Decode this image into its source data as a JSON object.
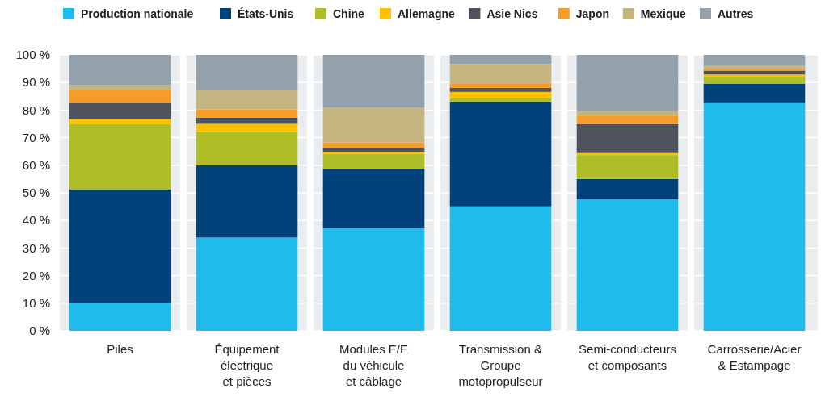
{
  "chart_data": {
    "type": "bar",
    "stacked": true,
    "categories": [
      "Piles",
      "Équipement\nélectrique\net pièces",
      "Modules E/E\ndu véhicule\net câblage",
      "Transmission &\nGroupe\nmotopropulseur",
      "Semi-conducteurs\net composants",
      "Carrosserie/Acier\n& Estampage"
    ],
    "series": [
      {
        "name": "Production nationale",
        "color": "#1fbbec",
        "values": [
          10,
          33.8,
          37.3,
          45.1,
          47.7,
          82.5
        ]
      },
      {
        "name": "États-Unis",
        "color": "#00437a",
        "values": [
          41.3,
          26.2,
          21.4,
          37.8,
          7.3,
          7.1
        ]
      },
      {
        "name": "Chine",
        "color": "#afbd26",
        "values": [
          23.6,
          12.0,
          5.5,
          1.4,
          8.7,
          2.5
        ]
      },
      {
        "name": "Allemagne",
        "color": "#ffc000",
        "values": [
          1.8,
          3.0,
          0.7,
          2.3,
          1.0,
          0.8
        ]
      },
      {
        "name": "Asie Nics",
        "color": "#4f535c",
        "values": [
          5.9,
          2.3,
          1.4,
          1.4,
          10.2,
          1.4
        ]
      },
      {
        "name": "Japon",
        "color": "#f59c2a",
        "values": [
          4.6,
          2.9,
          2.0,
          1.5,
          3.1,
          0.7
        ]
      },
      {
        "name": "Mexique",
        "color": "#c4b580",
        "values": [
          1.9,
          6.9,
          12.7,
          7.2,
          1.6,
          1.0
        ]
      },
      {
        "name": "Autres",
        "color": "#94a1ab",
        "values": [
          10.9,
          12.9,
          19.0,
          3.3,
          20.4,
          4.0
        ]
      }
    ],
    "ylim": [
      0,
      100
    ],
    "yticks": [
      {
        "value": 0,
        "label": "0 %"
      },
      {
        "value": 10,
        "label": "10 %"
      },
      {
        "value": 20,
        "label": "20 %"
      },
      {
        "value": 30,
        "label": "30 %"
      },
      {
        "value": 40,
        "label": "40 %"
      },
      {
        "value": 50,
        "label": "50 %"
      },
      {
        "value": 60,
        "label": "60 %"
      },
      {
        "value": 70,
        "label": "70 %"
      },
      {
        "value": 80,
        "label": "80 %"
      },
      {
        "value": 90,
        "label": "90 %"
      },
      {
        "value": 100,
        "label": "100 %"
      }
    ],
    "grid": "y",
    "legend": "top"
  }
}
